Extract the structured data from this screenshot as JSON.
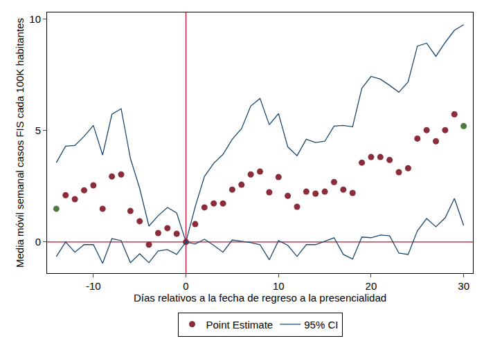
{
  "chart_data": {
    "type": "scatter",
    "x_label": "Días relativos a la fecha de regreso a la presencialidad",
    "y_label": "Media móvil semanal casos FIS cada 100K habitantes",
    "x": [
      -14,
      -13,
      -12,
      -11,
      -10,
      -9,
      -8,
      -7,
      -6,
      -5,
      -4,
      -3,
      -2,
      -1,
      0,
      1,
      2,
      3,
      4,
      5,
      6,
      7,
      8,
      9,
      10,
      11,
      12,
      13,
      14,
      15,
      16,
      17,
      18,
      19,
      20,
      21,
      22,
      23,
      24,
      25,
      26,
      27,
      28,
      29,
      30
    ],
    "series": [
      {
        "name": "Point Estimate",
        "type": "scatter",
        "marker": "circle",
        "color": "#8b2c3a",
        "values": [
          1.49,
          2.1,
          1.92,
          2.32,
          2.54,
          1.49,
          2.94,
          3.03,
          1.39,
          0.93,
          -0.12,
          0.4,
          0.62,
          0.37,
          0,
          0.8,
          1.55,
          1.73,
          1.73,
          2.35,
          2.57,
          3.03,
          3.16,
          2.23,
          2.91,
          2.07,
          1.58,
          2.26,
          2.17,
          2.26,
          2.69,
          2.35,
          2.2,
          3.56,
          3.81,
          3.81,
          3.68,
          3.13,
          3.31,
          4.64,
          5.02,
          4.52,
          5.02,
          5.73,
          5.2
        ],
        "colors": [
          "#4d7c3c",
          "#8b2c3a",
          "#8b2c3a",
          "#8b2c3a",
          "#8b2c3a",
          "#8b2c3a",
          "#8b2c3a",
          "#8b2c3a",
          "#8b2c3a",
          "#8b2c3a",
          "#8b2c3a",
          "#8b2c3a",
          "#8b2c3a",
          "#8b2c3a",
          "#8b2c3a",
          "#8b2c3a",
          "#8b2c3a",
          "#8b2c3a",
          "#8b2c3a",
          "#8b2c3a",
          "#8b2c3a",
          "#8b2c3a",
          "#8b2c3a",
          "#8b2c3a",
          "#8b2c3a",
          "#8b2c3a",
          "#8b2c3a",
          "#8b2c3a",
          "#8b2c3a",
          "#8b2c3a",
          "#8b2c3a",
          "#8b2c3a",
          "#8b2c3a",
          "#8b2c3a",
          "#8b2c3a",
          "#8b2c3a",
          "#8b2c3a",
          "#8b2c3a",
          "#8b2c3a",
          "#8b2c3a",
          "#8b2c3a",
          "#8b2c3a",
          "#8b2c3a",
          "#8b2c3a",
          "#4d7c3c"
        ]
      },
      {
        "name": "95% CI",
        "type": "line",
        "line_style": "solid",
        "color": "#1a476f",
        "upper": [
          3.56,
          4.3,
          4.33,
          4.74,
          5.23,
          3.9,
          5.73,
          5.98,
          3.75,
          2.41,
          0.71,
          1.18,
          1.55,
          1.3,
          0,
          1.58,
          2.94,
          3.53,
          3.93,
          4.61,
          5.08,
          6.1,
          6.44,
          5.26,
          5.76,
          4.27,
          3.87,
          4.61,
          4.46,
          4.52,
          5.2,
          5.23,
          5.17,
          6.9,
          7.43,
          7.31,
          7.03,
          6.72,
          7.18,
          8.79,
          8.92,
          8.33,
          8.95,
          9.5,
          9.75
        ],
        "lower": [
          -0.65,
          0,
          -0.46,
          -0.12,
          -0.12,
          -0.96,
          0.15,
          0.06,
          -0.93,
          -0.53,
          -0.93,
          -0.4,
          -0.34,
          -0.56,
          0,
          -0.09,
          0.12,
          -0.15,
          -0.46,
          0.09,
          0.03,
          -0.03,
          -0.12,
          -0.8,
          0.06,
          -0.15,
          -0.65,
          -0.12,
          -0.12,
          0.03,
          0.19,
          -0.56,
          -0.77,
          0.22,
          0.19,
          0.31,
          0.28,
          -0.5,
          -0.56,
          0.5,
          1.05,
          0.68,
          1.08,
          1.95,
          0.74
        ]
      }
    ],
    "reference_lines": {
      "x": [
        0
      ],
      "y": [
        0
      ],
      "color": "#c8102e"
    },
    "xlim": [
      -15,
      31
    ],
    "xticks": [
      -10,
      0,
      10,
      20,
      30
    ],
    "ylim": [
      -1.4,
      10.3
    ],
    "yticks": [
      0,
      5,
      10
    ],
    "grid": false,
    "legend": "bottom"
  }
}
